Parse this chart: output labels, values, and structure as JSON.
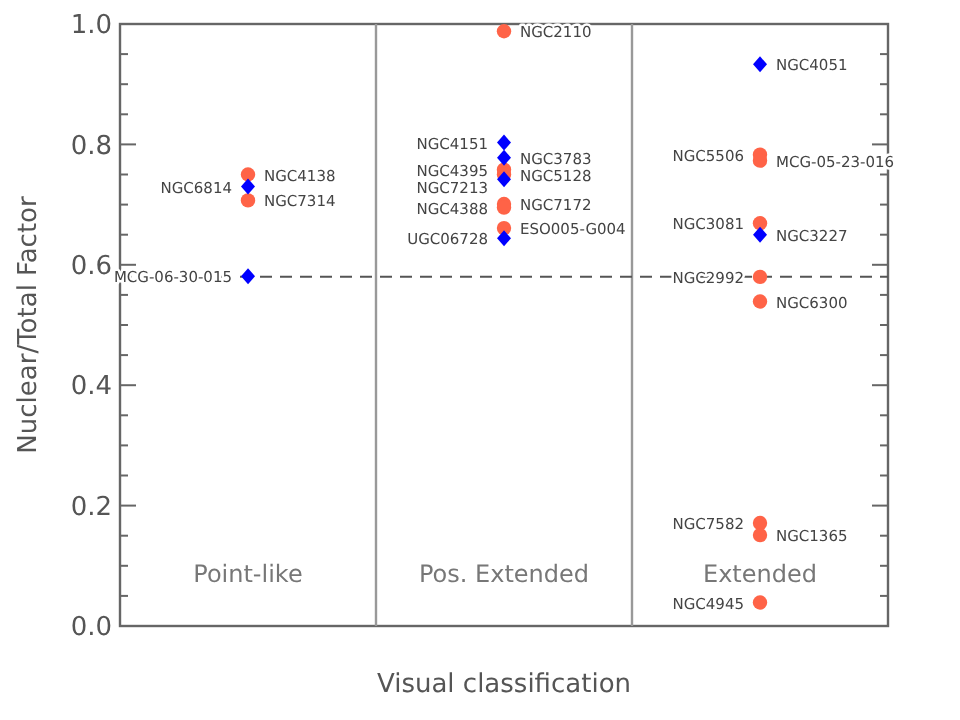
{
  "chart_data": {
    "type": "scatter",
    "xlabel": "Visual classification",
    "ylabel": "Nuclear/Total Factor",
    "categories": [
      "Point-like",
      "Pos. Extended",
      "Extended"
    ],
    "ylim": [
      0,
      1
    ],
    "yticks": [
      {
        "value": 0,
        "label": "0.0"
      },
      {
        "value": 0.05,
        "label": null
      },
      {
        "value": 0.1,
        "label": null
      },
      {
        "value": 0.15,
        "label": null
      },
      {
        "value": 0.2,
        "label": "0.2"
      },
      {
        "value": 0.25,
        "label": null
      },
      {
        "value": 0.3,
        "label": null
      },
      {
        "value": 0.35,
        "label": null
      },
      {
        "value": 0.4,
        "label": "0.4"
      },
      {
        "value": 0.45,
        "label": null
      },
      {
        "value": 0.5,
        "label": null
      },
      {
        "value": 0.55,
        "label": null
      },
      {
        "value": 0.6,
        "label": "0.6"
      },
      {
        "value": 0.65,
        "label": null
      },
      {
        "value": 0.7,
        "label": null
      },
      {
        "value": 0.75,
        "label": null
      },
      {
        "value": 0.8,
        "label": "0.8"
      },
      {
        "value": 0.85,
        "label": null
      },
      {
        "value": 0.9,
        "label": null
      },
      {
        "value": 0.95,
        "label": null
      },
      {
        "value": 1,
        "label": "1.0"
      }
    ],
    "series": [
      {
        "color": "#ff6347",
        "marker": "circle",
        "x": [
          "Point-like",
          "Point-like",
          "Pos. Extended",
          "Pos. Extended",
          "Pos. Extended",
          "Pos. Extended",
          "Pos. Extended",
          "Pos. Extended",
          "Extended",
          "Extended",
          "Extended",
          "Extended",
          "Extended",
          "Extended",
          "Extended",
          "Extended"
        ],
        "values": [
          0.75,
          0.707,
          0.988,
          0.758,
          0.75,
          0.701,
          0.695,
          0.661,
          0.783,
          0.773,
          0.669,
          0.58,
          0.539,
          0.171,
          0.151,
          0.039
        ]
      },
      {
        "color": "#0000ff",
        "marker": "diamond",
        "x": [
          "Point-like",
          "Point-like",
          "Pos. Extended",
          "Pos. Extended",
          "Pos. Extended",
          "Pos. Extended",
          "Extended",
          "Extended"
        ],
        "values": [
          0.73,
          0.581,
          0.803,
          0.778,
          0.742,
          0.644,
          0.933,
          0.65
        ]
      }
    ],
    "ref_lines": [
      {
        "axis": "y",
        "value": 0.58,
        "line_style": "dashed"
      }
    ],
    "annotations": [
      {
        "text": "NGC4138",
        "x": "Point-like",
        "y": 0.75
      },
      {
        "text": "NGC6814",
        "x": "Point-like",
        "y": 0.73
      },
      {
        "text": "NGC7314",
        "x": "Point-like",
        "y": 0.707
      },
      {
        "text": "MCG-06-30-015",
        "x": "Point-like",
        "y": 0.581
      },
      {
        "text": "NGC2110",
        "x": "Pos. Extended",
        "y": 0.988
      },
      {
        "text": "NGC4151",
        "x": "Pos. Extended",
        "y": 0.803
      },
      {
        "text": "NGC3783",
        "x": "Pos. Extended",
        "y": 0.778
      },
      {
        "text": "NGC4395",
        "x": "Pos. Extended",
        "y": 0.758
      },
      {
        "text": "NGC7213",
        "x": "Pos. Extended",
        "y": 0.742
      },
      {
        "text": "NGC5128",
        "x": "Pos. Extended",
        "y": 0.75
      },
      {
        "text": "NGC7172",
        "x": "Pos. Extended",
        "y": 0.701
      },
      {
        "text": "NGC4388",
        "x": "Pos. Extended",
        "y": 0.695
      },
      {
        "text": "ESO005-G004",
        "x": "Pos. Extended",
        "y": 0.661
      },
      {
        "text": "UGC06728",
        "x": "Pos. Extended",
        "y": 0.644
      },
      {
        "text": "NGC4051",
        "x": "Extended",
        "y": 0.933
      },
      {
        "text": "NGC5506",
        "x": "Extended",
        "y": 0.783
      },
      {
        "text": "MCG-05-23-016",
        "x": "Extended",
        "y": 0.773
      },
      {
        "text": "NGC3081",
        "x": "Extended",
        "y": 0.669
      },
      {
        "text": "NGC3227",
        "x": "Extended",
        "y": 0.65
      },
      {
        "text": "NGC2992",
        "x": "Extended",
        "y": 0.58
      },
      {
        "text": "NGC6300",
        "x": "Extended",
        "y": 0.539
      },
      {
        "text": "NGC7582",
        "x": "Extended",
        "y": 0.171
      },
      {
        "text": "NGC1365",
        "x": "Extended",
        "y": 0.151
      },
      {
        "text": "NGC4945",
        "x": "Extended",
        "y": 0.039
      }
    ]
  }
}
